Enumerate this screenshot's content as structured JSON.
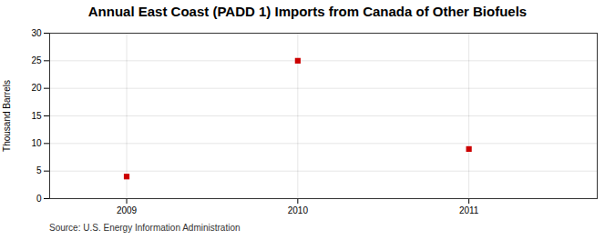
{
  "chart_data": {
    "type": "scatter",
    "title": "Annual East Coast (PADD 1) Imports from Canada of Other Biofuels",
    "ylabel": "Thousand Barrels",
    "source": "Source: U.S. Energy Information Administration",
    "x": [
      2009,
      2010,
      2011
    ],
    "values": [
      4,
      25,
      9
    ],
    "color": "#cc0000",
    "marker": "square",
    "xlim": [
      2008.55,
      2011.75
    ],
    "xticks": [
      2009,
      2010,
      2011
    ],
    "ylim": [
      0,
      30
    ],
    "yticks": [
      0,
      5,
      10,
      15,
      20,
      25,
      30
    ],
    "grid": true
  }
}
